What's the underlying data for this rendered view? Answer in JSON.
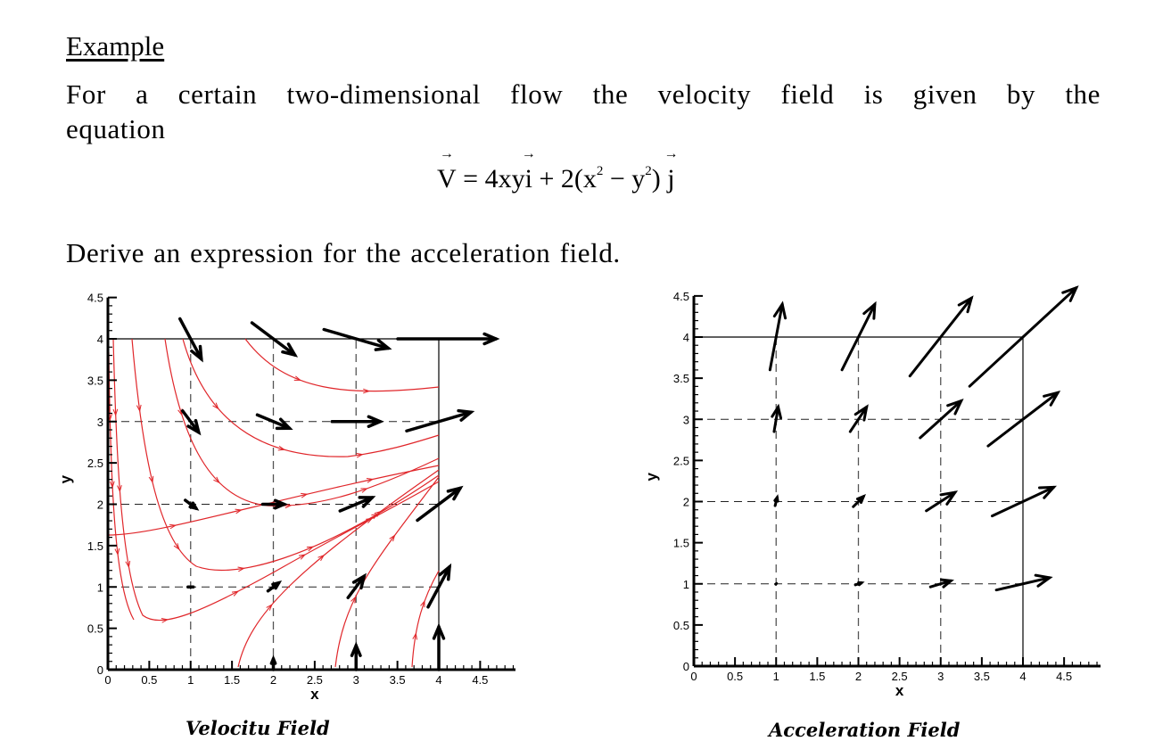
{
  "document": {
    "heading": "Example",
    "paragraph": "For a certain two-dimensional flow the velocity field is given by the equation",
    "equation": {
      "lhs": "V",
      "equals": " = 4xy",
      "i": "i",
      "plus": " + 2(x",
      "sup1": "2",
      "minus": " − y",
      "sup2": "2",
      "close": ")",
      "j": "j"
    },
    "question": "Derive an expression for the acceleration field."
  },
  "chart_data": [
    {
      "type": "vector_field",
      "title": "Velocitu Field",
      "xlabel": "x",
      "ylabel": "y",
      "xlim": [
        0,
        4.9
      ],
      "ylim": [
        0,
        4.5
      ],
      "xticks": [
        "0",
        "0.5",
        "1",
        "1.5",
        "2",
        "2.5",
        "3",
        "3.5",
        "4",
        "4.5"
      ],
      "yticks": [
        "0",
        "0.5",
        "1",
        "1.5",
        "2",
        "2.5",
        "3",
        "3.5",
        "4",
        "4.5"
      ],
      "grid": "dashed at x=1,2,3 and y=1,2,3; solid box to x=4,y=4",
      "field": "V = 4xy i + 2(x^2 - y^2) j",
      "streamline_color": "#e0262a",
      "arrow_color": "#000000",
      "vectors": [
        {
          "x": 1,
          "y": 4,
          "u": 16,
          "v": -30
        },
        {
          "x": 2,
          "y": 4,
          "u": 32,
          "v": -24
        },
        {
          "x": 3,
          "y": 4,
          "u": 48,
          "v": -14
        },
        {
          "x": 4,
          "y": 4,
          "u": 64,
          "v": 0
        },
        {
          "x": 1,
          "y": 3,
          "u": 12,
          "v": -16
        },
        {
          "x": 2,
          "y": 3,
          "u": 24,
          "v": -10
        },
        {
          "x": 3,
          "y": 3,
          "u": 36,
          "v": 0
        },
        {
          "x": 4,
          "y": 3,
          "u": 48,
          "v": 14
        },
        {
          "x": 1,
          "y": 2,
          "u": 8,
          "v": -6
        },
        {
          "x": 2,
          "y": 2,
          "u": 16,
          "v": 0
        },
        {
          "x": 3,
          "y": 2,
          "u": 24,
          "v": 10
        },
        {
          "x": 4,
          "y": 2,
          "u": 32,
          "v": 24
        },
        {
          "x": 1,
          "y": 1,
          "u": 4,
          "v": 0
        },
        {
          "x": 2,
          "y": 1,
          "u": 8,
          "v": 6
        },
        {
          "x": 3,
          "y": 1,
          "u": 12,
          "v": 16
        },
        {
          "x": 4,
          "y": 1,
          "u": 16,
          "v": 30
        },
        {
          "x": 2,
          "y": 0,
          "u": 0,
          "v": 8
        },
        {
          "x": 3,
          "y": 0,
          "u": 0,
          "v": 18
        },
        {
          "x": 4,
          "y": 0,
          "u": 0,
          "v": 32
        }
      ]
    },
    {
      "type": "vector_field",
      "title": "Acceleration Field",
      "xlabel": "x",
      "ylabel": "y",
      "xlim": [
        0,
        4.9
      ],
      "ylim": [
        0,
        4.5
      ],
      "xticks": [
        "0",
        "0.5",
        "1",
        "1.5",
        "2",
        "2.5",
        "3",
        "3.5",
        "4",
        "4.5"
      ],
      "yticks": [
        "0",
        "0.5",
        "1",
        "1.5",
        "2",
        "2.5",
        "3",
        "3.5",
        "4",
        "4.5"
      ],
      "grid": "dashed at x=1,2,3 and y=1,2,3; solid box to x=4,y=4",
      "arrow_color": "#000000",
      "vectors": [
        {
          "x": 1,
          "y": 4,
          "u": 0.3,
          "v": 1.6
        },
        {
          "x": 2,
          "y": 4,
          "u": 0.8,
          "v": 1.6
        },
        {
          "x": 3,
          "y": 4,
          "u": 1.5,
          "v": 1.9
        },
        {
          "x": 4,
          "y": 4,
          "u": 2.6,
          "v": 2.4
        },
        {
          "x": 1,
          "y": 3,
          "u": 0.1,
          "v": 0.6
        },
        {
          "x": 2,
          "y": 3,
          "u": 0.4,
          "v": 0.6
        },
        {
          "x": 3,
          "y": 3,
          "u": 1.0,
          "v": 0.9
        },
        {
          "x": 4,
          "y": 3,
          "u": 1.7,
          "v": 1.3
        },
        {
          "x": 1,
          "y": 2,
          "u": 0.05,
          "v": 0.2
        },
        {
          "x": 2,
          "y": 2,
          "u": 0.25,
          "v": 0.25
        },
        {
          "x": 3,
          "y": 2,
          "u": 0.7,
          "v": 0.45
        },
        {
          "x": 4,
          "y": 2,
          "u": 1.5,
          "v": 0.7
        },
        {
          "x": 1,
          "y": 1,
          "u": 0.02,
          "v": 0.02
        },
        {
          "x": 2,
          "y": 1,
          "u": 0.15,
          "v": 0.05
        },
        {
          "x": 3,
          "y": 1,
          "u": 0.5,
          "v": 0.15
        },
        {
          "x": 4,
          "y": 1,
          "u": 1.3,
          "v": 0.3
        }
      ]
    }
  ]
}
